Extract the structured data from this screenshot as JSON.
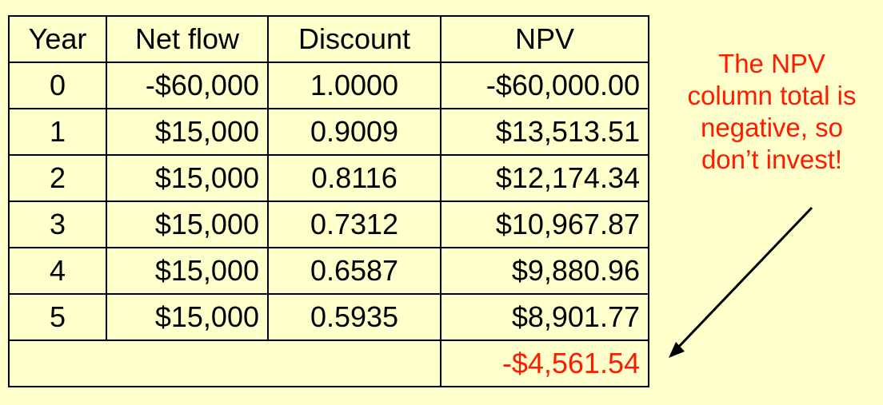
{
  "table": {
    "headers": [
      "Year",
      "Net flow",
      "Discount",
      "NPV"
    ],
    "rows": [
      [
        "0",
        "-$60,000",
        "1.0000",
        "-$60,000.00"
      ],
      [
        "1",
        "$15,000",
        "0.9009",
        "$13,513.51"
      ],
      [
        "2",
        "$15,000",
        "0.8116",
        "$12,174.34"
      ],
      [
        "3",
        "$15,000",
        "0.7312",
        "$10,967.87"
      ],
      [
        "4",
        "$15,000",
        "0.6587",
        "$9,880.96"
      ],
      [
        "5",
        "$15,000",
        "0.5935",
        "$8,901.77"
      ]
    ],
    "total": "-$4,561.54"
  },
  "callout": {
    "lines": [
      "The NPV",
      "column total is",
      "negative, so",
      "don’t invest!"
    ]
  },
  "colors": {
    "background": "#ffffcc",
    "accent": "#ff1a00",
    "text": "#000000"
  }
}
